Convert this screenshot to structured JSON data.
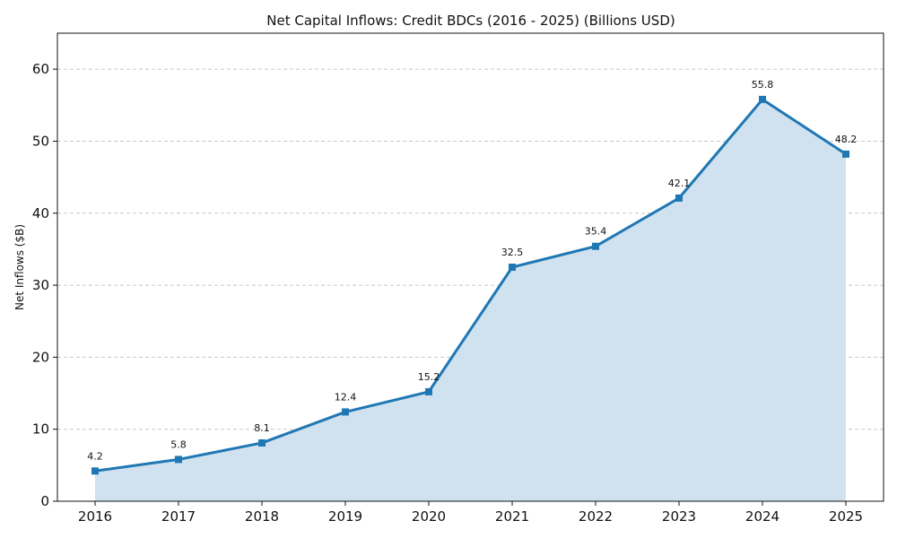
{
  "chart_data": {
    "type": "area",
    "title": "Net Capital Inflows: Credit BDCs (2016 - 2025) (Billions USD)",
    "xlabel": "",
    "ylabel": "Net Inflows ($B)",
    "categories": [
      "2016",
      "2017",
      "2018",
      "2019",
      "2020",
      "2021",
      "2022",
      "2023",
      "2024",
      "2025"
    ],
    "series": [
      {
        "name": "Net Inflows",
        "values": [
          4.2,
          5.8,
          8.1,
          12.4,
          15.2,
          32.5,
          35.4,
          42.1,
          55.8,
          48.2
        ]
      }
    ],
    "data_labels": [
      "4.2",
      "5.8",
      "8.1",
      "12.4",
      "15.2",
      "32.5",
      "35.4",
      "42.1",
      "55.8",
      "48.2"
    ],
    "ylim": [
      0,
      65
    ],
    "yticks": [
      0,
      10,
      20,
      30,
      40,
      50,
      60
    ],
    "ytick_labels": [
      "0",
      "10",
      "20",
      "30",
      "40",
      "50",
      "60"
    ],
    "grid": true,
    "legend": "none",
    "colors": {
      "line": "#1f77b4",
      "fill": "#d0e2ef",
      "marker": "#1f77b4",
      "grid": "#c8c8c8"
    }
  }
}
